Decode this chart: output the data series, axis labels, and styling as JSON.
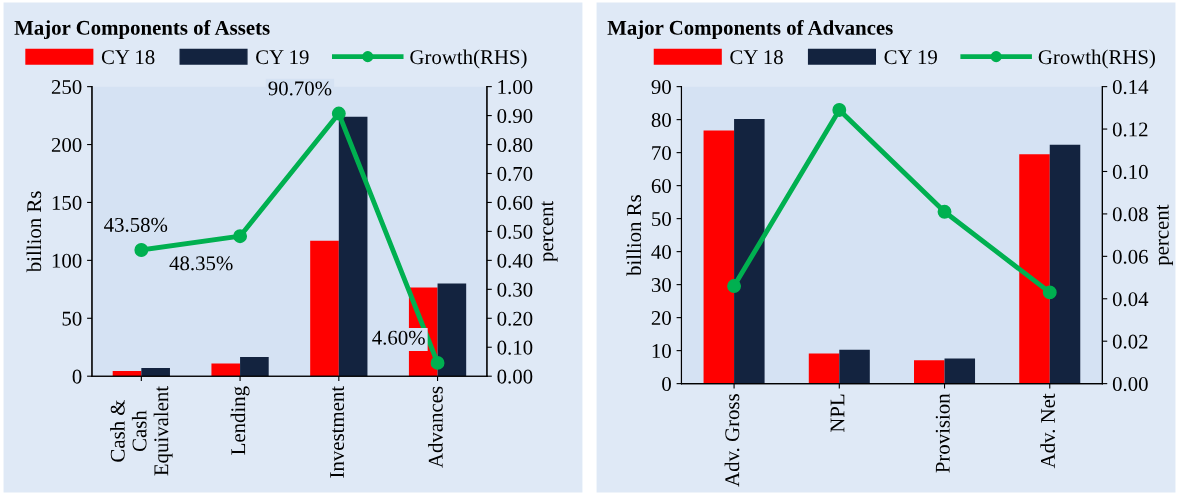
{
  "chart_data": [
    {
      "type": "bar",
      "title": "Major Components of Assets",
      "ylabel": "billion Rs",
      "y2label": "percent",
      "categories": [
        "Cash &\nCash\nEquivalent",
        "Lending",
        "Investment",
        "Advances"
      ],
      "series": [
        {
          "name": "CY 18",
          "color": "#ff0000",
          "values": [
            4.5,
            11,
            117,
            76.5
          ]
        },
        {
          "name": "CY 19",
          "color": "#13233f",
          "values": [
            7,
            16.5,
            224,
            80
          ]
        },
        {
          "name": "Growth(RHS)",
          "type": "line",
          "axis": "y2",
          "color": "#00b050",
          "values": [
            0.4358,
            0.4835,
            0.907,
            0.046
          ],
          "value_labels": [
            "43.58%",
            "48.35%",
            "90.70%",
            "4.60%"
          ]
        }
      ],
      "ylim": [
        0,
        250
      ],
      "yticks": [
        0,
        50,
        100,
        150,
        200,
        250
      ],
      "y2lim": [
        0,
        1.0
      ],
      "y2ticks": [
        {
          "value": 0,
          "label": "0.00"
        },
        {
          "value": 0.1,
          "label": "0.10"
        },
        {
          "value": 0.2,
          "label": "0.20"
        },
        {
          "value": 0.3,
          "label": "0.30"
        },
        {
          "value": 0.4,
          "label": "0.40"
        },
        {
          "value": 0.5,
          "label": "0.50"
        },
        {
          "value": 0.6,
          "label": "0.60"
        },
        {
          "value": 0.7,
          "label": "0.70"
        },
        {
          "value": 0.8,
          "label": "0.80"
        },
        {
          "value": 0.9,
          "label": "0.90"
        },
        {
          "value": 1.0,
          "label": "1.00"
        }
      ],
      "marker": "circle",
      "legend": "top",
      "grid": false
    },
    {
      "type": "bar",
      "title": "Major Components of Advances",
      "ylabel": "billion Rs",
      "y2label": "percent",
      "categories": [
        "Adv. Gross",
        "NPL",
        "Provision",
        "Adv. Net"
      ],
      "series": [
        {
          "name": "CY 18",
          "color": "#ff0000",
          "values": [
            76.7,
            9.1,
            7.1,
            69.5
          ]
        },
        {
          "name": "CY 19",
          "color": "#13233f",
          "values": [
            80.2,
            10.3,
            7.6,
            72.4
          ]
        },
        {
          "name": "Growth(RHS)",
          "type": "line",
          "axis": "y2",
          "color": "#00b050",
          "values": [
            0.046,
            0.129,
            0.081,
            0.043
          ]
        }
      ],
      "ylim": [
        0,
        90
      ],
      "yticks": [
        0,
        10,
        20,
        30,
        40,
        50,
        60,
        70,
        80,
        90
      ],
      "y2lim": [
        0,
        0.14
      ],
      "y2ticks": [
        {
          "value": 0,
          "label": "0.00"
        },
        {
          "value": 0.02,
          "label": "0.02"
        },
        {
          "value": 0.04,
          "label": "0.04"
        },
        {
          "value": 0.06,
          "label": "0.06"
        },
        {
          "value": 0.08,
          "label": "0.08"
        },
        {
          "value": 0.1,
          "label": "0.10"
        },
        {
          "value": 0.12,
          "label": "0.12"
        },
        {
          "value": 0.14,
          "label": "0.14"
        }
      ],
      "marker": "circle",
      "legend": "top",
      "grid": false
    }
  ]
}
